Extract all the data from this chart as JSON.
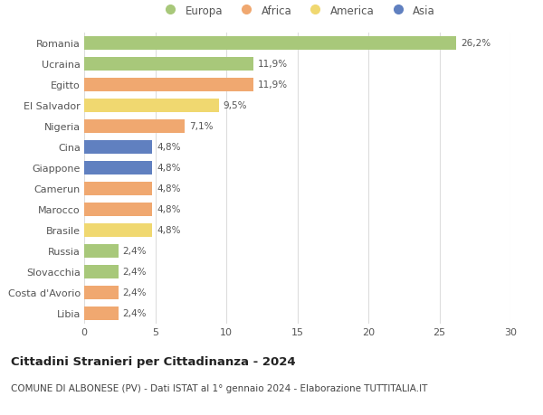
{
  "categories": [
    "Romania",
    "Ucraina",
    "Egitto",
    "El Salvador",
    "Nigeria",
    "Cina",
    "Giappone",
    "Camerun",
    "Marocco",
    "Brasile",
    "Russia",
    "Slovacchia",
    "Costa d'Avorio",
    "Libia"
  ],
  "values": [
    26.2,
    11.9,
    11.9,
    9.5,
    7.1,
    4.8,
    4.8,
    4.8,
    4.8,
    4.8,
    2.4,
    2.4,
    2.4,
    2.4
  ],
  "labels": [
    "26,2%",
    "11,9%",
    "11,9%",
    "9,5%",
    "7,1%",
    "4,8%",
    "4,8%",
    "4,8%",
    "4,8%",
    "4,8%",
    "2,4%",
    "2,4%",
    "2,4%",
    "2,4%"
  ],
  "colors": [
    "#a8c87a",
    "#a8c87a",
    "#f0a870",
    "#f0d870",
    "#f0a870",
    "#6080c0",
    "#6080c0",
    "#f0a870",
    "#f0a870",
    "#f0d870",
    "#a8c87a",
    "#a8c87a",
    "#f0a870",
    "#f0a870"
  ],
  "legend_labels": [
    "Europa",
    "Africa",
    "America",
    "Asia"
  ],
  "legend_colors": [
    "#a8c87a",
    "#f0a870",
    "#f0d870",
    "#6080c0"
  ],
  "xlim": [
    0,
    30
  ],
  "xticks": [
    0,
    5,
    10,
    15,
    20,
    25,
    30
  ],
  "title1": "Cittadini Stranieri per Cittadinanza - 2024",
  "title2": "COMUNE DI ALBONESE (PV) - Dati ISTAT al 1° gennaio 2024 - Elaborazione TUTTITALIA.IT",
  "bg_color": "#ffffff",
  "grid_color": "#dddddd",
  "bar_height": 0.65,
  "label_fontsize": 7.5,
  "tick_fontsize": 8,
  "title1_fontsize": 9.5,
  "title2_fontsize": 7.5,
  "legend_fontsize": 8.5,
  "legend_marker_size": 9
}
